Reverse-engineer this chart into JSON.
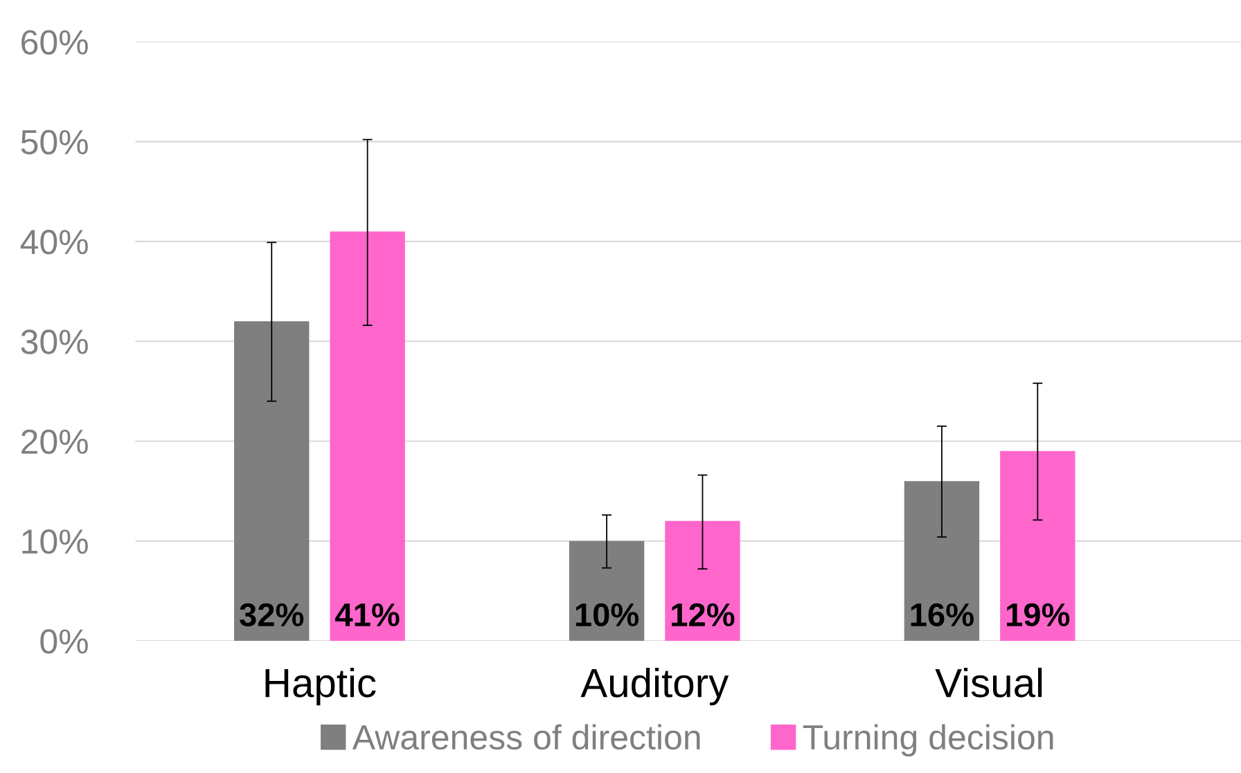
{
  "chart_data": {
    "type": "bar",
    "categories": [
      "Haptic",
      "Auditory",
      "Visual"
    ],
    "series": [
      {
        "name": "Awareness of direction",
        "color": "#7f7f7f",
        "values": [
          32,
          10,
          16
        ],
        "value_labels": [
          "32%",
          "10%",
          "16%"
        ],
        "errors": [
          [
            24.0,
            39.9
          ],
          [
            7.3,
            12.6
          ],
          [
            10.4,
            21.5
          ]
        ]
      },
      {
        "name": "Turning decision",
        "color": "#ff66cc",
        "values": [
          41,
          12,
          19
        ],
        "value_labels": [
          "41%",
          "12%",
          "19%"
        ],
        "errors": [
          [
            31.6,
            50.2
          ],
          [
            7.2,
            16.6
          ],
          [
            12.1,
            25.8
          ]
        ]
      }
    ],
    "ylim": [
      0,
      60
    ],
    "yticks": [
      {
        "value": 0,
        "label": "0%"
      },
      {
        "value": 10,
        "label": "10%"
      },
      {
        "value": 20,
        "label": "20%"
      },
      {
        "value": 30,
        "label": "30%"
      },
      {
        "value": 40,
        "label": "40%"
      },
      {
        "value": 50,
        "label": "50%"
      },
      {
        "value": 60,
        "label": "60%"
      }
    ],
    "grid": "y",
    "legend": "bottom"
  }
}
